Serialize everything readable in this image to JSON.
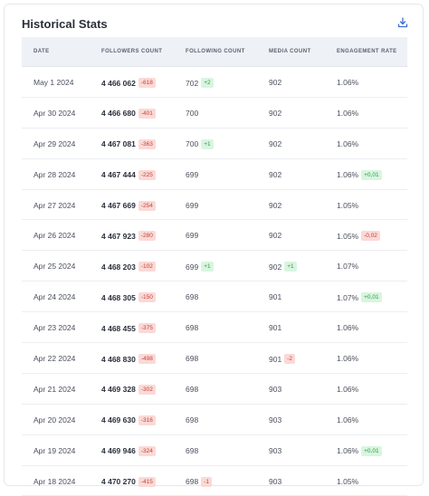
{
  "title": "Historical Stats",
  "columns": [
    "DATE",
    "FOLLOWERS COUNT",
    "FOLLOWING COUNT",
    "MEDIA COUNT",
    "ENGAGEMENT RATE"
  ],
  "colors": {
    "negative_bg": "#fbd9d6",
    "negative_text": "#c2453c",
    "positive_bg": "#d9f5df",
    "positive_text": "#2f9a49",
    "download_icon": "#3b6fd4"
  },
  "rows": [
    {
      "date": "May 1 2024",
      "followers": "4 466 062",
      "followers_delta": "-618",
      "following": "702",
      "following_delta": "+2",
      "media": "902",
      "media_delta": "",
      "engagement": "1.06%",
      "engagement_delta": ""
    },
    {
      "date": "Apr 30 2024",
      "followers": "4 466 680",
      "followers_delta": "-401",
      "following": "700",
      "following_delta": "",
      "media": "902",
      "media_delta": "",
      "engagement": "1.06%",
      "engagement_delta": ""
    },
    {
      "date": "Apr 29 2024",
      "followers": "4 467 081",
      "followers_delta": "-363",
      "following": "700",
      "following_delta": "+1",
      "media": "902",
      "media_delta": "",
      "engagement": "1.06%",
      "engagement_delta": ""
    },
    {
      "date": "Apr 28 2024",
      "followers": "4 467 444",
      "followers_delta": "-225",
      "following": "699",
      "following_delta": "",
      "media": "902",
      "media_delta": "",
      "engagement": "1.06%",
      "engagement_delta": "+0,01"
    },
    {
      "date": "Apr 27 2024",
      "followers": "4 467 669",
      "followers_delta": "-254",
      "following": "699",
      "following_delta": "",
      "media": "902",
      "media_delta": "",
      "engagement": "1.05%",
      "engagement_delta": ""
    },
    {
      "date": "Apr 26 2024",
      "followers": "4 467 923",
      "followers_delta": "-280",
      "following": "699",
      "following_delta": "",
      "media": "902",
      "media_delta": "",
      "engagement": "1.05%",
      "engagement_delta": "-0,02"
    },
    {
      "date": "Apr 25 2024",
      "followers": "4 468 203",
      "followers_delta": "-102",
      "following": "699",
      "following_delta": "+1",
      "media": "902",
      "media_delta": "+1",
      "engagement": "1.07%",
      "engagement_delta": ""
    },
    {
      "date": "Apr 24 2024",
      "followers": "4 468 305",
      "followers_delta": "-150",
      "following": "698",
      "following_delta": "",
      "media": "901",
      "media_delta": "",
      "engagement": "1.07%",
      "engagement_delta": "+0,01"
    },
    {
      "date": "Apr 23 2024",
      "followers": "4 468 455",
      "followers_delta": "-375",
      "following": "698",
      "following_delta": "",
      "media": "901",
      "media_delta": "",
      "engagement": "1.06%",
      "engagement_delta": ""
    },
    {
      "date": "Apr 22 2024",
      "followers": "4 468 830",
      "followers_delta": "-498",
      "following": "698",
      "following_delta": "",
      "media": "901",
      "media_delta": "-2",
      "engagement": "1.06%",
      "engagement_delta": ""
    },
    {
      "date": "Apr 21 2024",
      "followers": "4 469 328",
      "followers_delta": "-302",
      "following": "698",
      "following_delta": "",
      "media": "903",
      "media_delta": "",
      "engagement": "1.06%",
      "engagement_delta": ""
    },
    {
      "date": "Apr 20 2024",
      "followers": "4 469 630",
      "followers_delta": "-316",
      "following": "698",
      "following_delta": "",
      "media": "903",
      "media_delta": "",
      "engagement": "1.06%",
      "engagement_delta": ""
    },
    {
      "date": "Apr 19 2024",
      "followers": "4 469 946",
      "followers_delta": "-324",
      "following": "698",
      "following_delta": "",
      "media": "903",
      "media_delta": "",
      "engagement": "1.06%",
      "engagement_delta": "+0,01"
    },
    {
      "date": "Apr 18 2024",
      "followers": "4 470 270",
      "followers_delta": "-415",
      "following": "698",
      "following_delta": "-1",
      "media": "903",
      "media_delta": "",
      "engagement": "1.05%",
      "engagement_delta": ""
    }
  ]
}
